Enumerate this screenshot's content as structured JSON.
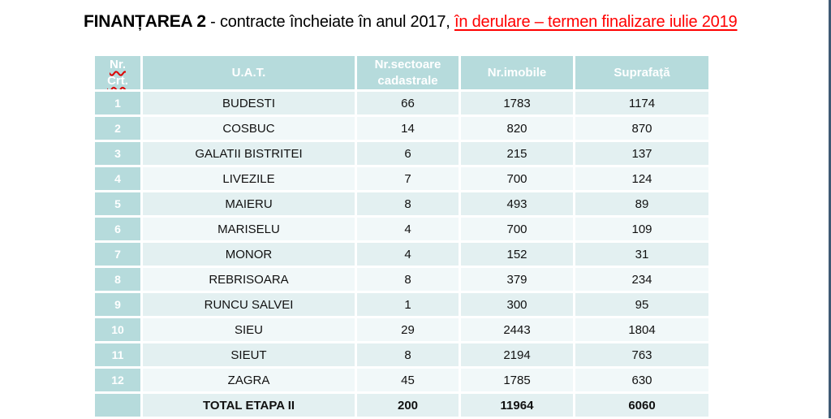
{
  "title": {
    "bold": "FINANȚAREA 2",
    "regular": " - contracte încheiate în anul 2017, ",
    "red_underlined": "în derulare – termen finalizare iulie 2019"
  },
  "colors": {
    "accent_teal": "#b6dbdc",
    "row_odd": "#e3f0f1",
    "row_even": "#f1f8f9",
    "header_text": "#ffffff",
    "title_red": "#ff0000",
    "spellcheck_red": "#dd0000",
    "window_edge": "#3e5a74"
  },
  "table": {
    "headers": {
      "nr_line1": "Nr.",
      "nr_line2": "Crt.",
      "uat": "U.A.T.",
      "sectoare": "Nr.sectoare cadastrale",
      "imobile": "Nr.imobile",
      "suprafata": "Suprafață"
    },
    "rows": [
      {
        "nr": "1",
        "uat": "BUDESTI",
        "sectoare": "66",
        "imobile": "1783",
        "suprafata": "1174"
      },
      {
        "nr": "2",
        "uat": "COSBUC",
        "sectoare": "14",
        "imobile": "820",
        "suprafata": "870"
      },
      {
        "nr": "3",
        "uat": "GALATII BISTRITEI",
        "sectoare": "6",
        "imobile": "215",
        "suprafata": "137"
      },
      {
        "nr": "4",
        "uat": "LIVEZILE",
        "sectoare": "7",
        "imobile": "700",
        "suprafata": "124"
      },
      {
        "nr": "5",
        "uat": "MAIERU",
        "sectoare": "8",
        "imobile": "493",
        "suprafata": "89"
      },
      {
        "nr": "6",
        "uat": "MARISELU",
        "sectoare": "4",
        "imobile": "700",
        "suprafata": "109"
      },
      {
        "nr": "7",
        "uat": "MONOR",
        "sectoare": "4",
        "imobile": "152",
        "suprafata": "31"
      },
      {
        "nr": "8",
        "uat": "REBRISOARA",
        "sectoare": "8",
        "imobile": "379",
        "suprafata": "234"
      },
      {
        "nr": "9",
        "uat": "RUNCU SALVEI",
        "sectoare": "1",
        "imobile": "300",
        "suprafata": "95"
      },
      {
        "nr": "10",
        "uat": "SIEU",
        "sectoare": "29",
        "imobile": "2443",
        "suprafata": "1804"
      },
      {
        "nr": "11",
        "uat": "SIEUT",
        "sectoare": "8",
        "imobile": "2194",
        "suprafata": "763"
      },
      {
        "nr": "12",
        "uat": "ZAGRA",
        "sectoare": "45",
        "imobile": "1785",
        "suprafata": "630"
      }
    ],
    "total": {
      "label": "TOTAL ETAPA II",
      "sectoare": "200",
      "imobile": "11964",
      "suprafata": "6060"
    }
  }
}
